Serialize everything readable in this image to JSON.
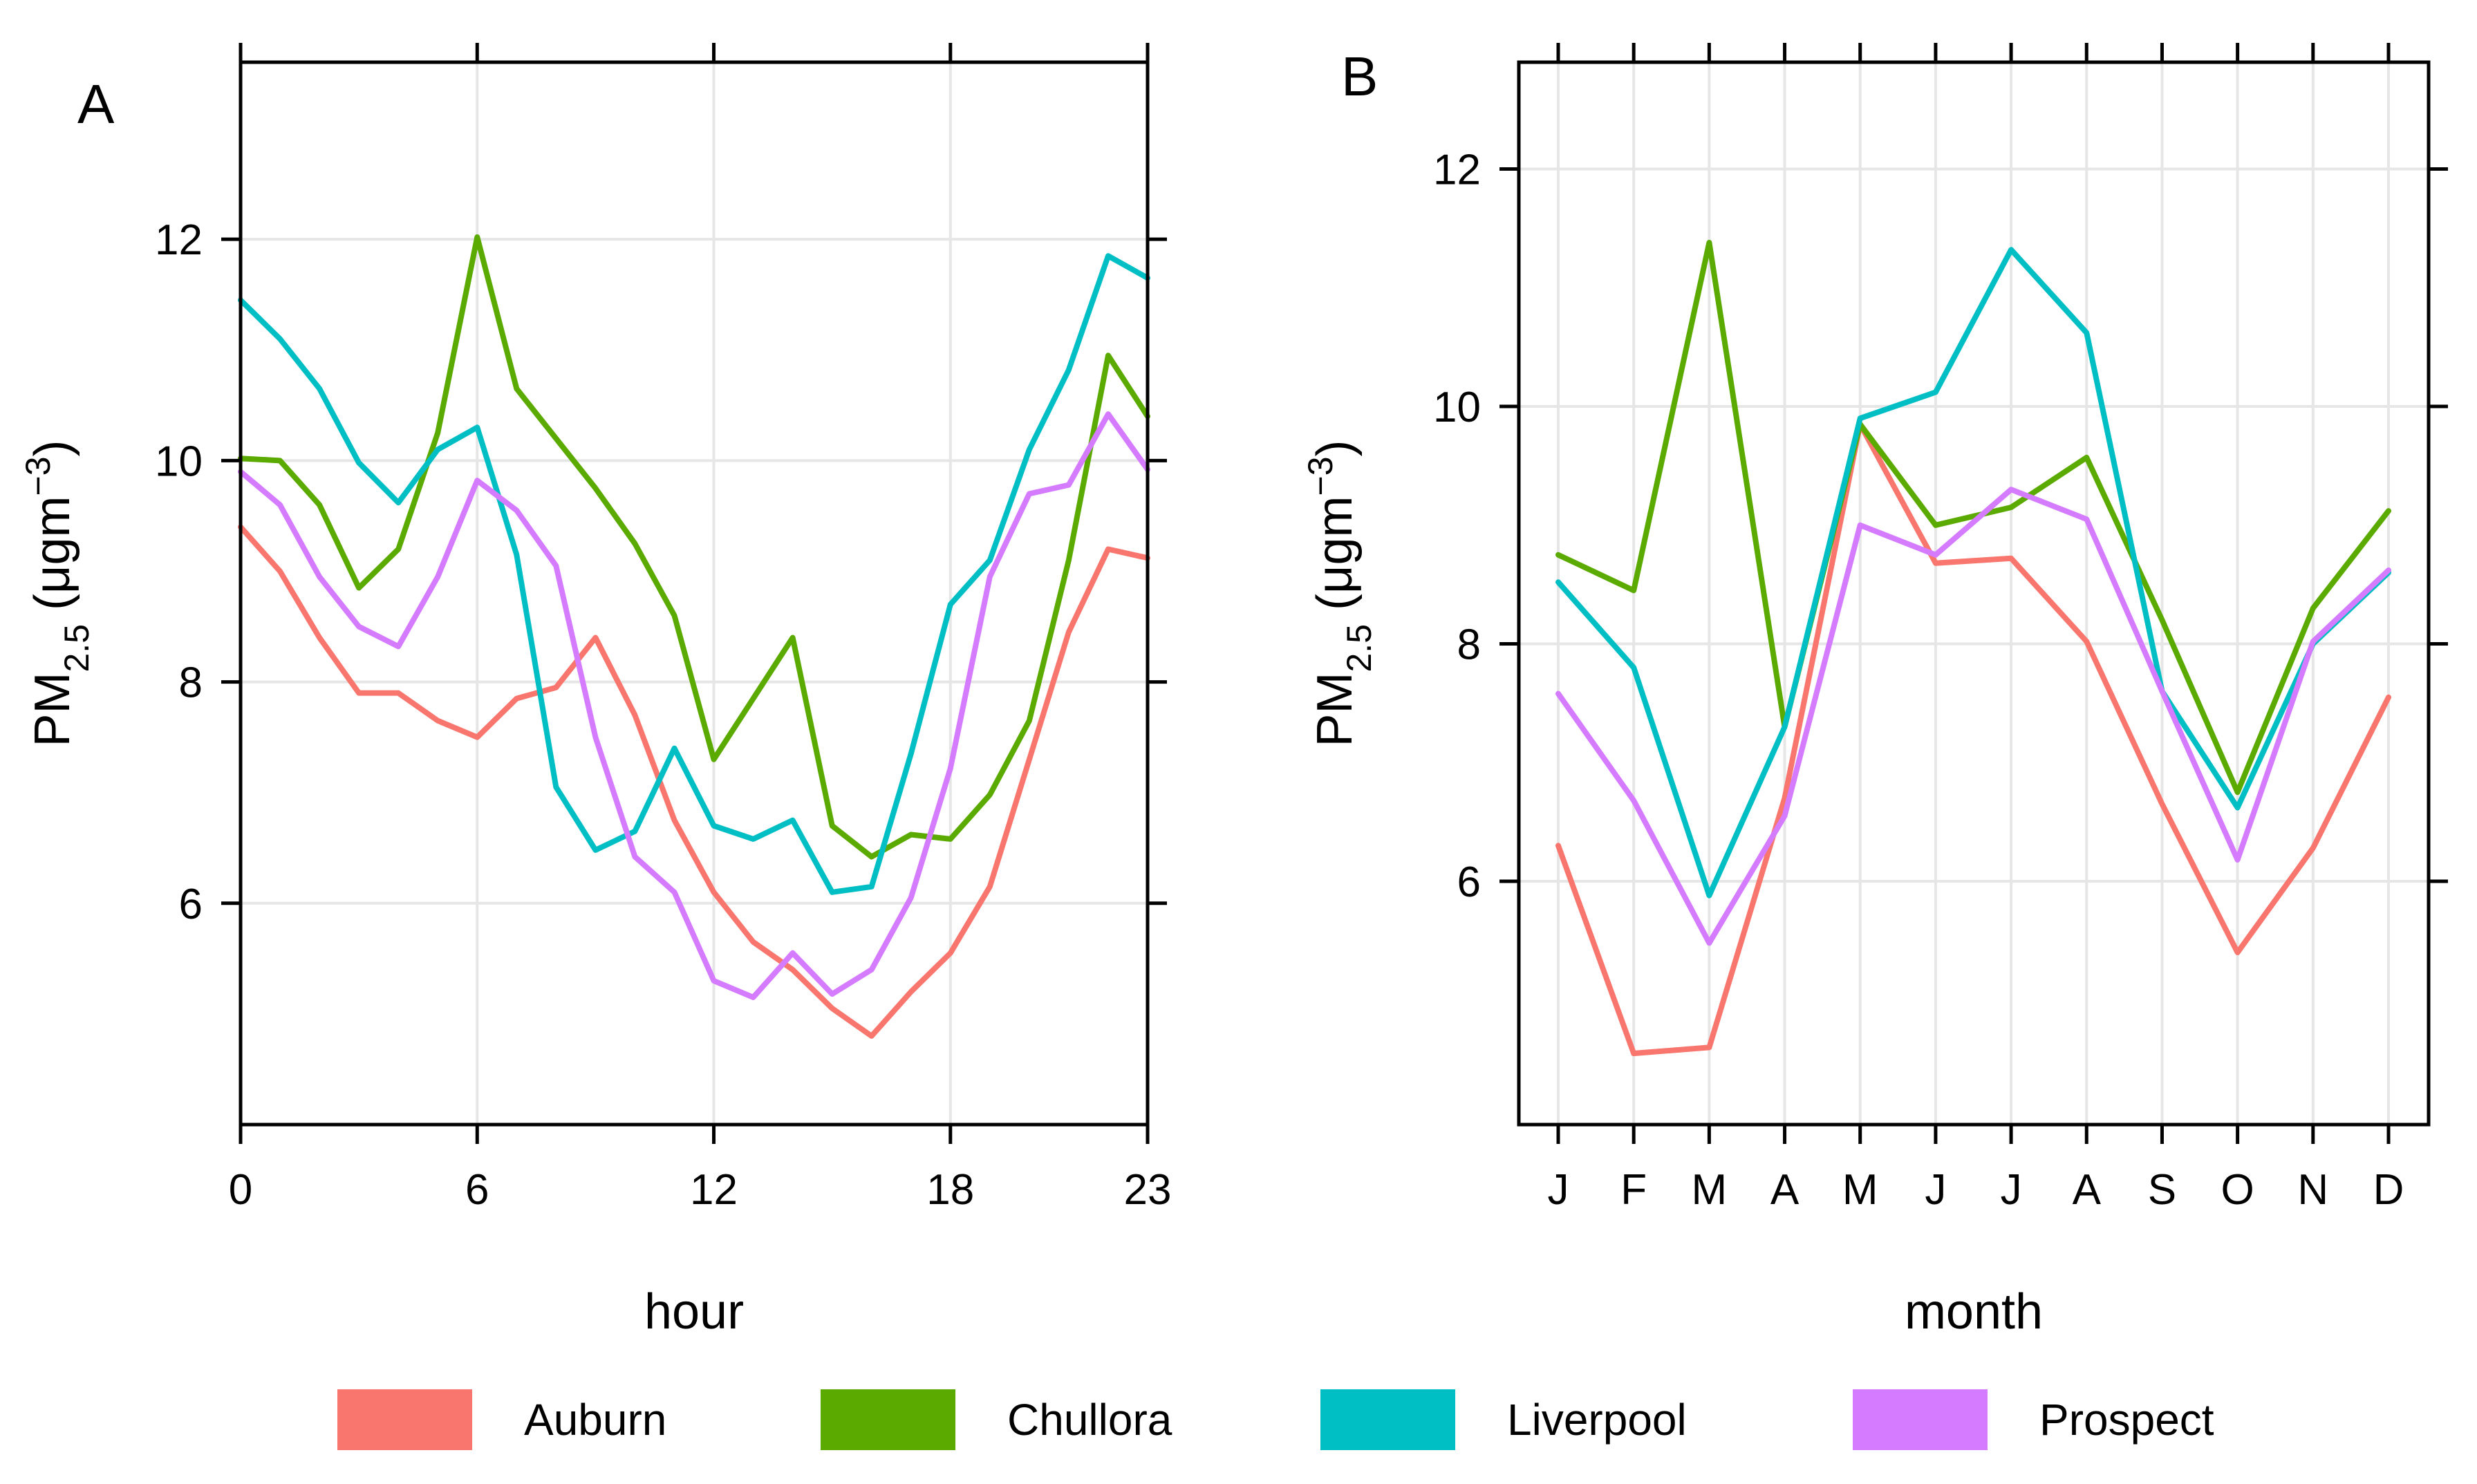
{
  "legend": {
    "entries": [
      {
        "name": "Auburn",
        "color": "#F8766D"
      },
      {
        "name": "Chullora",
        "color": "#5BAA00"
      },
      {
        "name": "Liverpool",
        "color": "#00BFC4"
      },
      {
        "name": "Prospect",
        "color": "#D57BFF"
      }
    ]
  },
  "chart_data": [
    {
      "panel": "A",
      "type": "line",
      "xlabel": "hour",
      "ylabel": "PM",
      "ylabel_sub": "2.5",
      "ylabel_unit_open": " (μgm",
      "ylabel_unit_sup": "−3",
      "ylabel_unit_close": ")",
      "xlim": [
        0,
        23
      ],
      "ylim": [
        4.0,
        13.6
      ],
      "xticks": [
        0,
        6,
        12,
        18,
        23
      ],
      "yticks": [
        6,
        8,
        10,
        12
      ],
      "x": [
        0,
        1,
        2,
        3,
        4,
        5,
        6,
        7,
        8,
        9,
        10,
        11,
        12,
        13,
        14,
        15,
        16,
        17,
        18,
        19,
        20,
        21,
        22,
        23
      ],
      "series": [
        {
          "name": "Auburn",
          "values": [
            9.4,
            9.0,
            8.4,
            7.9,
            7.9,
            7.65,
            7.5,
            7.85,
            7.95,
            8.4,
            7.7,
            6.75,
            6.1,
            5.65,
            5.4,
            5.05,
            4.8,
            5.2,
            5.55,
            6.15,
            7.3,
            8.45,
            9.2,
            9.12
          ]
        },
        {
          "name": "Chullora",
          "values": [
            10.02,
            10.0,
            9.6,
            8.85,
            9.2,
            10.25,
            12.02,
            10.65,
            10.2,
            9.75,
            9.25,
            8.6,
            7.3,
            7.85,
            8.4,
            6.7,
            6.42,
            6.62,
            6.58,
            6.98,
            7.65,
            9.1,
            10.95,
            10.4
          ]
        },
        {
          "name": "Liverpool",
          "values": [
            11.45,
            11.1,
            10.65,
            9.98,
            9.62,
            10.1,
            10.3,
            9.15,
            7.05,
            6.48,
            6.65,
            7.4,
            6.7,
            6.58,
            6.75,
            6.1,
            6.15,
            7.35,
            8.7,
            9.1,
            10.1,
            10.82,
            11.85,
            11.65
          ]
        },
        {
          "name": "Prospect",
          "values": [
            9.9,
            9.6,
            8.95,
            8.5,
            8.32,
            8.95,
            9.82,
            9.55,
            9.05,
            7.5,
            6.42,
            6.1,
            5.3,
            5.15,
            5.55,
            5.18,
            5.4,
            6.05,
            7.22,
            8.95,
            9.7,
            9.78,
            10.42,
            9.92
          ]
        }
      ]
    },
    {
      "panel": "B",
      "type": "line",
      "xlabel": "month",
      "ylabel": "PM",
      "ylabel_sub": "2.5",
      "ylabel_unit_open": " (μgm",
      "ylabel_unit_sup": "−3",
      "ylabel_unit_close": ")",
      "ylim": [
        3.95,
        12.9
      ],
      "categories": [
        "J",
        "F",
        "M",
        "A",
        "M",
        "J",
        "J",
        "A",
        "S",
        "O",
        "N",
        "D"
      ],
      "yticks": [
        6,
        8,
        10,
        12
      ],
      "series": [
        {
          "name": "Auburn",
          "values": [
            6.3,
            4.55,
            4.6,
            6.7,
            9.85,
            8.68,
            8.72,
            8.02,
            6.65,
            5.4,
            6.28,
            7.55
          ]
        },
        {
          "name": "Chullora",
          "values": [
            8.75,
            8.45,
            11.38,
            7.3,
            9.85,
            9.0,
            9.15,
            9.57,
            8.2,
            6.75,
            8.3,
            9.12
          ]
        },
        {
          "name": "Liverpool",
          "values": [
            8.52,
            7.8,
            5.88,
            7.3,
            9.9,
            10.12,
            11.32,
            10.62,
            7.6,
            6.62,
            8.0,
            8.6
          ]
        },
        {
          "name": "Prospect",
          "values": [
            7.58,
            6.68,
            5.48,
            6.55,
            9.0,
            8.75,
            9.3,
            9.05,
            7.6,
            6.18,
            8.02,
            8.62
          ]
        }
      ]
    }
  ]
}
